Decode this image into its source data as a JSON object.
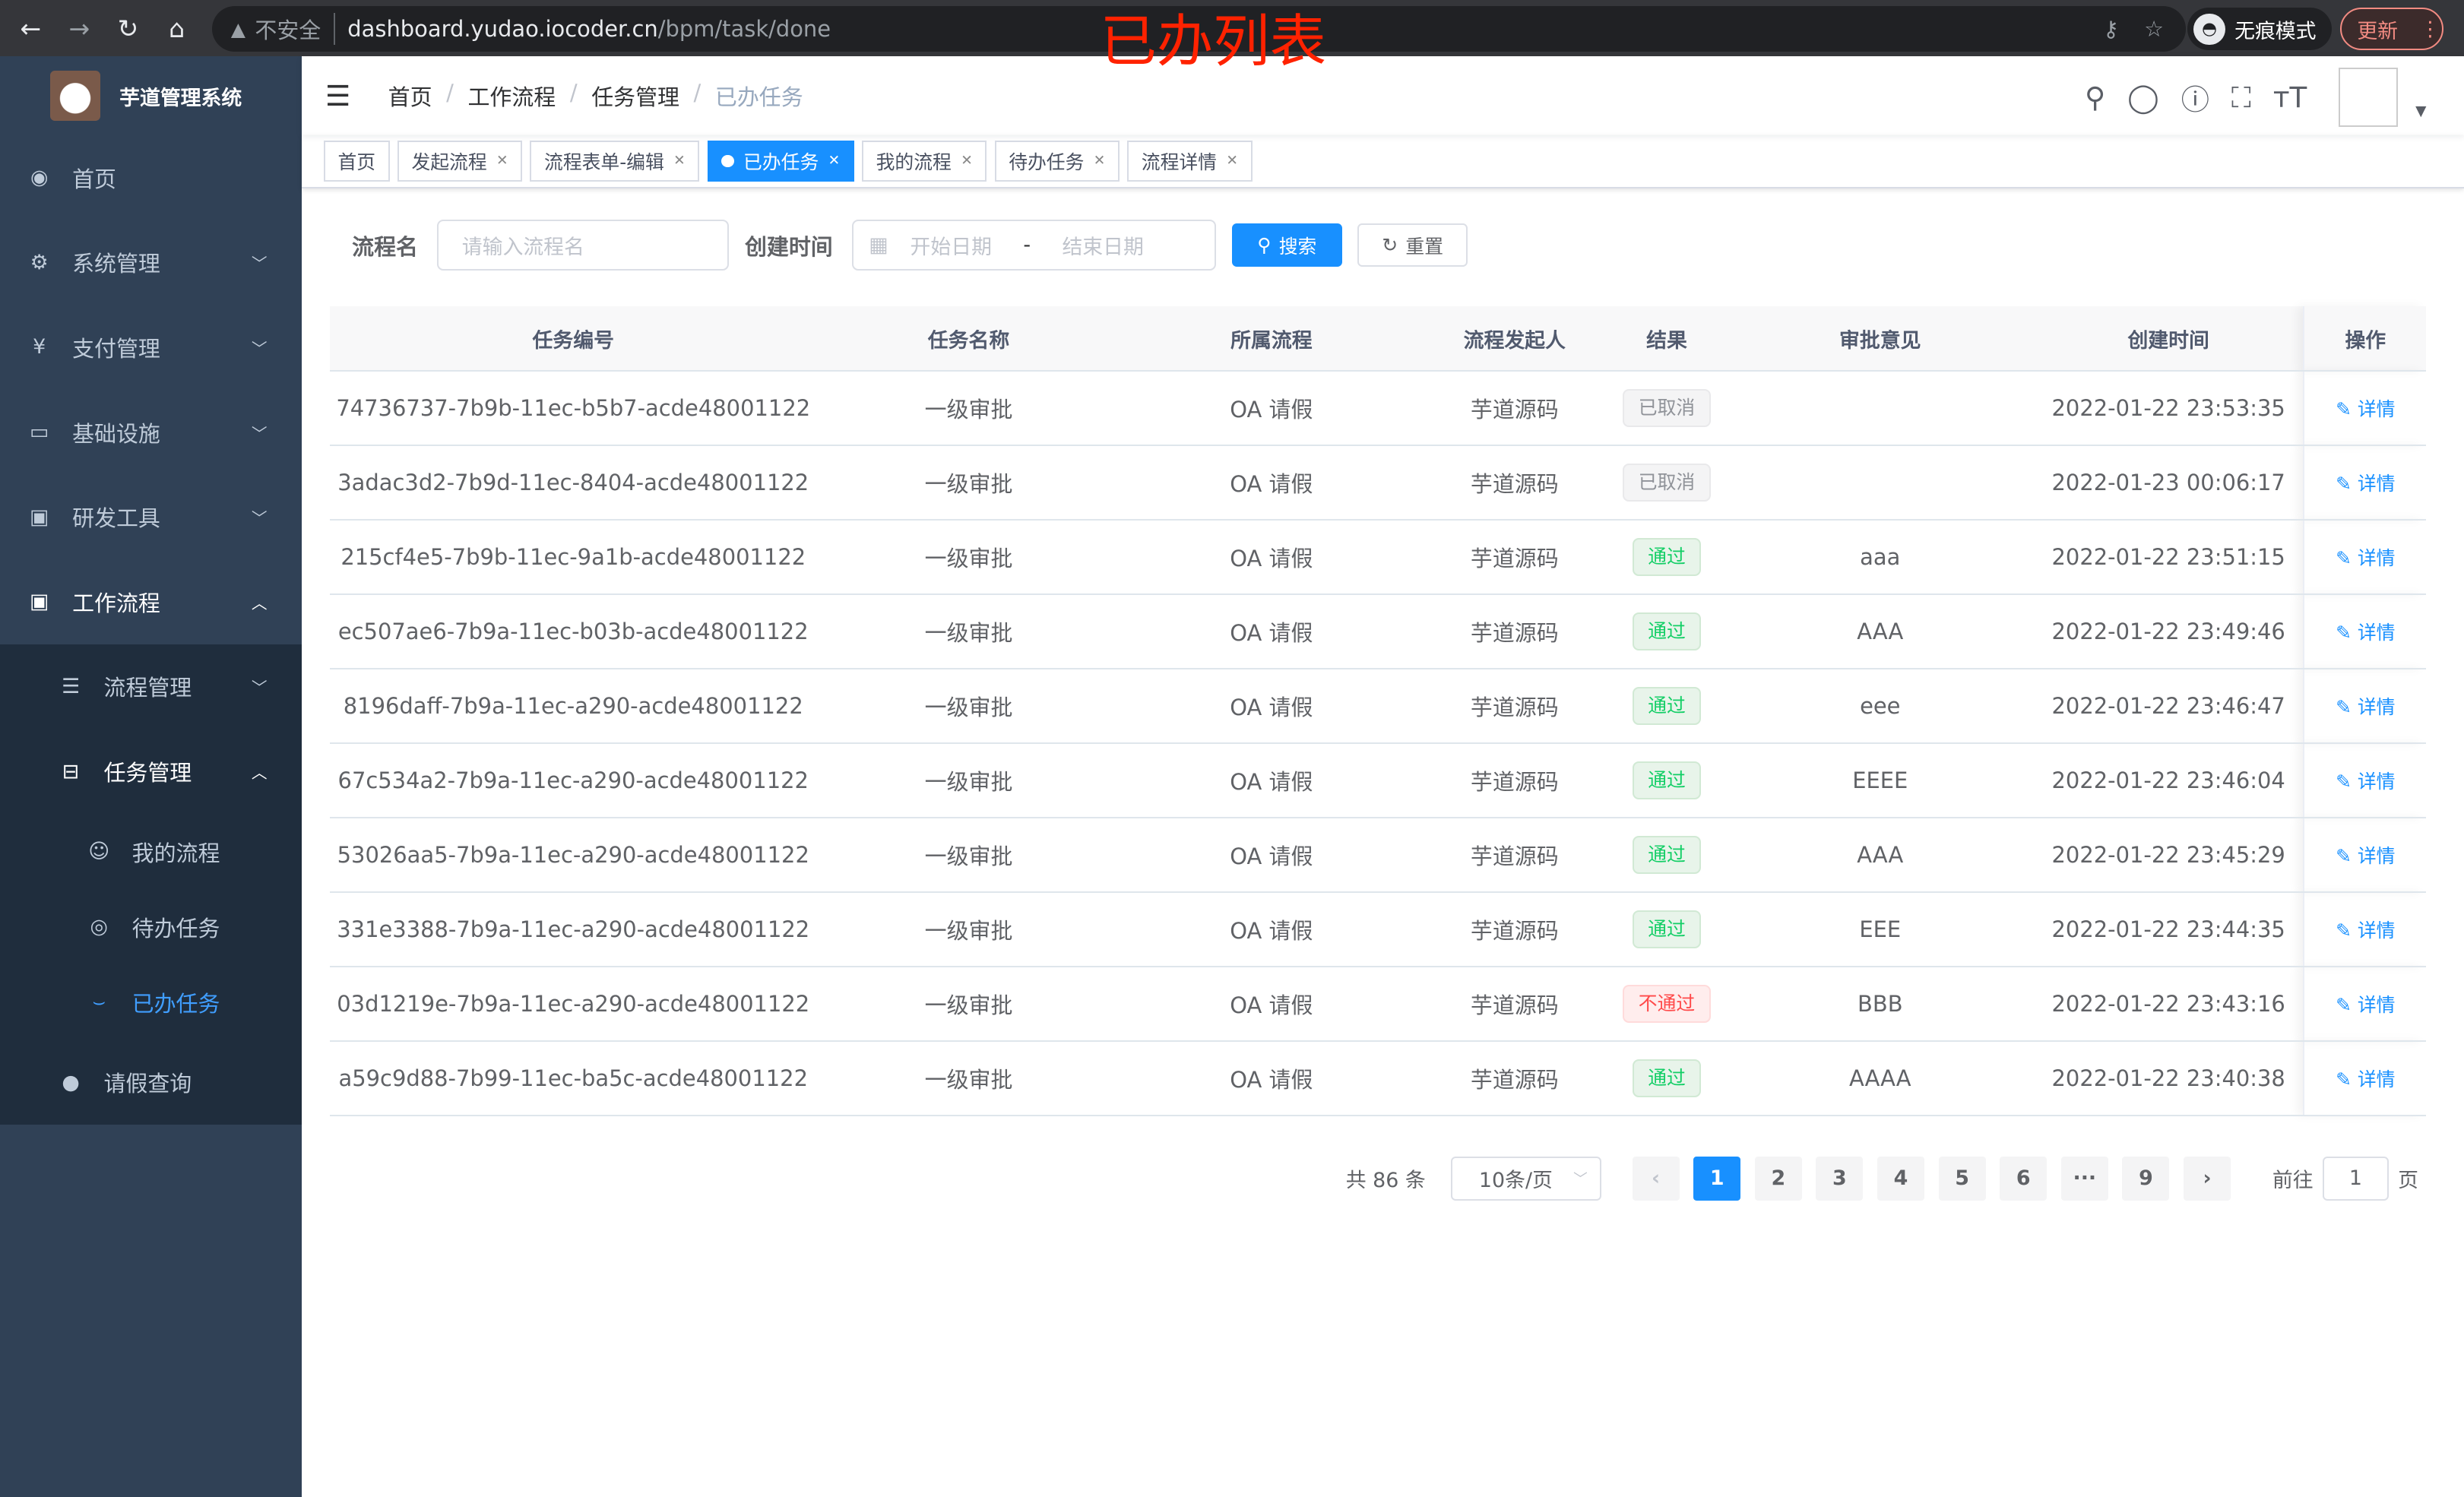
{
  "browser": {
    "insecure": "不安全",
    "url_host": "dashboard.yudao.iocoder.cn",
    "url_path": "/bpm/task/done",
    "incognito": "无痕模式",
    "update": "更新"
  },
  "overlay_title": "已办列表",
  "app": {
    "title": "芋道管理系统"
  },
  "sidebar": {
    "items": [
      {
        "label": "首页",
        "icon": "dashboard-icon"
      },
      {
        "label": "系统管理",
        "icon": "gear-icon"
      },
      {
        "label": "支付管理",
        "icon": "yen-icon"
      },
      {
        "label": "基础设施",
        "icon": "monitor-icon"
      },
      {
        "label": "研发工具",
        "icon": "toolbox-icon"
      },
      {
        "label": "工作流程",
        "icon": "toolbox-icon"
      }
    ],
    "sub": [
      {
        "label": "流程管理"
      },
      {
        "label": "任务管理"
      }
    ],
    "task_sub": [
      {
        "label": "我的流程"
      },
      {
        "label": "待办任务"
      },
      {
        "label": "已办任务"
      }
    ],
    "leave": {
      "label": "请假查询"
    }
  },
  "breadcrumb": [
    "首页",
    "工作流程",
    "任务管理",
    "已办任务"
  ],
  "tags": [
    {
      "label": "首页"
    },
    {
      "label": "发起流程"
    },
    {
      "label": "流程表单-编辑"
    },
    {
      "label": "已办任务"
    },
    {
      "label": "我的流程"
    },
    {
      "label": "待办任务"
    },
    {
      "label": "流程详情"
    }
  ],
  "form": {
    "name_label": "流程名",
    "name_placeholder": "请输入流程名",
    "time_label": "创建时间",
    "start_placeholder": "开始日期",
    "range_sep": "-",
    "end_placeholder": "结束日期",
    "search": "搜索",
    "reset": "重置"
  },
  "table": {
    "columns": [
      "任务编号",
      "任务名称",
      "所属流程",
      "流程发起人",
      "结果",
      "审批意见",
      "创建时间",
      "操作"
    ],
    "action": "详情",
    "rows": [
      [
        "74736737-7b9b-11ec-b5b7-acde48001122",
        "一级审批",
        "OA 请假",
        "芋道源码",
        "已取消",
        "",
        "2022-01-22 23:53:35"
      ],
      [
        "3adac3d2-7b9d-11ec-8404-acde48001122",
        "一级审批",
        "OA 请假",
        "芋道源码",
        "已取消",
        "",
        "2022-01-23 00:06:17"
      ],
      [
        "215cf4e5-7b9b-11ec-9a1b-acde48001122",
        "一级审批",
        "OA 请假",
        "芋道源码",
        "通过",
        "aaa",
        "2022-01-22 23:51:15"
      ],
      [
        "ec507ae6-7b9a-11ec-b03b-acde48001122",
        "一级审批",
        "OA 请假",
        "芋道源码",
        "通过",
        "AAA",
        "2022-01-22 23:49:46"
      ],
      [
        "8196daff-7b9a-11ec-a290-acde48001122",
        "一级审批",
        "OA 请假",
        "芋道源码",
        "通过",
        "eee",
        "2022-01-22 23:46:47"
      ],
      [
        "67c534a2-7b9a-11ec-a290-acde48001122",
        "一级审批",
        "OA 请假",
        "芋道源码",
        "通过",
        "EEEE",
        "2022-01-22 23:46:04"
      ],
      [
        "53026aa5-7b9a-11ec-a290-acde48001122",
        "一级审批",
        "OA 请假",
        "芋道源码",
        "通过",
        "AAA",
        "2022-01-22 23:45:29"
      ],
      [
        "331e3388-7b9a-11ec-a290-acde48001122",
        "一级审批",
        "OA 请假",
        "芋道源码",
        "通过",
        "EEE",
        "2022-01-22 23:44:35"
      ],
      [
        "03d1219e-7b9a-11ec-a290-acde48001122",
        "一级审批",
        "OA 请假",
        "芋道源码",
        "不通过",
        "BBB",
        "2022-01-22 23:43:16"
      ],
      [
        "a59c9d88-7b99-11ec-ba5c-acde48001122",
        "一级审批",
        "OA 请假",
        "芋道源码",
        "通过",
        "AAAA",
        "2022-01-22 23:40:38"
      ]
    ]
  },
  "pagination": {
    "total": "共 86 条",
    "page_size": "10条/页",
    "pages": [
      "1",
      "2",
      "3",
      "4",
      "5",
      "6",
      "···",
      "9"
    ],
    "current": "1",
    "goto_label": "前往",
    "goto_value": "1",
    "page_suffix": "页"
  }
}
